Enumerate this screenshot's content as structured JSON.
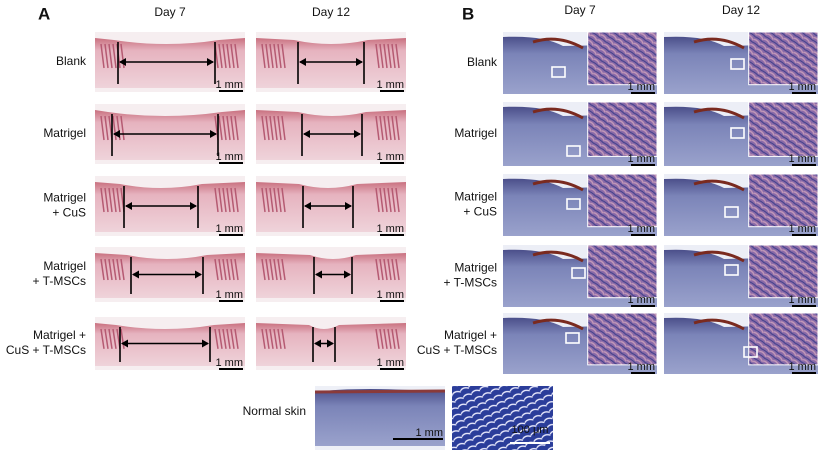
{
  "panel_a": {
    "label": "A",
    "columns": [
      "Day 7",
      "Day 12"
    ],
    "rows": [
      [
        "Blank"
      ],
      [
        "Matrigel"
      ],
      [
        "Matrigel",
        "+ CuS"
      ],
      [
        "Matrigel",
        "+ T-MSCs"
      ],
      [
        "Matrigel +",
        "CuS + T-MSCs"
      ]
    ],
    "scale_bar": "1 mm"
  },
  "panel_b": {
    "label": "B",
    "columns": [
      "Day 7",
      "Day 12"
    ],
    "rows": [
      [
        "Blank"
      ],
      [
        "Matrigel"
      ],
      [
        "Matrigel",
        "+ CuS"
      ],
      [
        "Matrigel",
        "+ T-MSCs"
      ],
      [
        "Matrigel +",
        "CuS + T-MSCs"
      ]
    ],
    "scale_bar": "1 mm"
  },
  "normal_skin": {
    "label": "Normal skin",
    "scale_bar": "1 mm",
    "inset_scale_bar": "100 μm"
  }
}
